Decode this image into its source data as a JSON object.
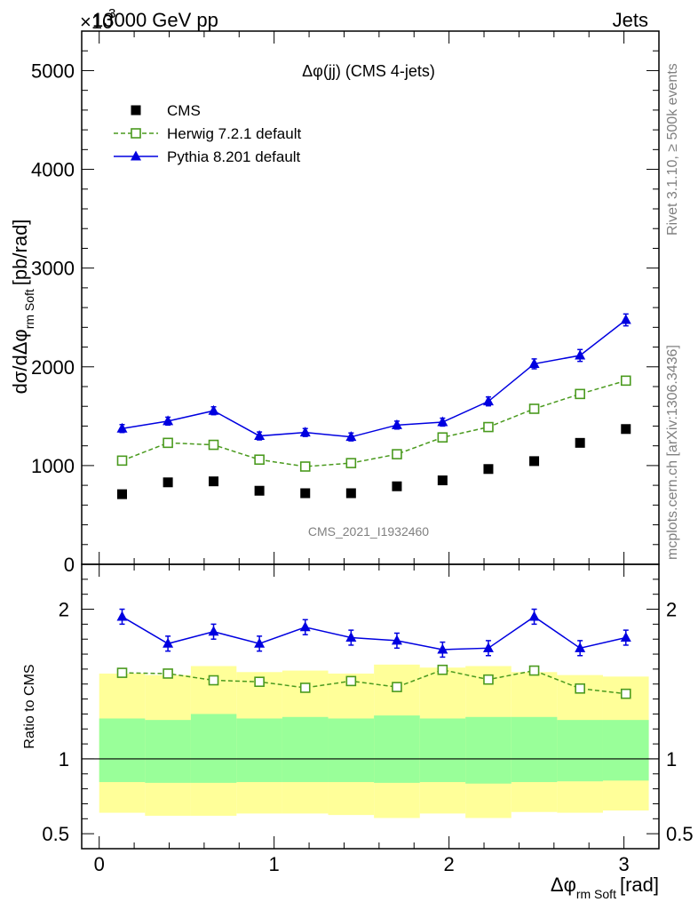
{
  "header": {
    "exponent_prefix": "×10",
    "exponent_power": "3",
    "process": "13000 GeV pp",
    "category": "Jets"
  },
  "side_labels": {
    "rivet": "Rivet 3.1.10, ≥ 500k events",
    "mcplots": "mcplots.cern.ch [arXiv:1306.3436]"
  },
  "watermark": "CMS_2021_I1932460",
  "chart_data": [
    {
      "type": "scatter",
      "panel": "main",
      "title": "Δφ(jj) (CMS 4-jets)",
      "ylabel": "dσ/dΔφ rm Soft [pb/rad]",
      "ylabel_main": "dσ/dΔφ",
      "ylabel_sub": "rm Soft",
      "ylabel_unit": "[pb/rad]",
      "xlim": [
        -0.1,
        3.2
      ],
      "ylim": [
        0,
        5400
      ],
      "y_scale_factor": 1000,
      "ytick_labels": [
        "0",
        "1000",
        "2000",
        "3000",
        "4000",
        "5000"
      ],
      "x": [
        0.131,
        0.393,
        0.654,
        0.916,
        1.178,
        1.44,
        1.702,
        1.963,
        2.225,
        2.487,
        2.749,
        3.011
      ],
      "series": [
        {
          "name": "CMS",
          "style": "data",
          "color": "#000000",
          "values": [
            710,
            830,
            840,
            745,
            720,
            720,
            790,
            850,
            965,
            1045,
            1230,
            1370
          ],
          "errors": [
            0,
            0,
            0,
            0,
            0,
            0,
            0,
            0,
            0,
            0,
            0,
            0
          ]
        },
        {
          "name": "Herwig 7.2.1 default",
          "style": "dashed-open-square",
          "color": "#4a9a1e",
          "values": [
            1050,
            1230,
            1210,
            1060,
            990,
            1025,
            1115,
            1285,
            1390,
            1575,
            1725,
            1860
          ],
          "errors": [
            10,
            10,
            10,
            10,
            10,
            10,
            10,
            10,
            12,
            12,
            14,
            16
          ]
        },
        {
          "name": "Pythia 8.201 default",
          "style": "solid-triangle",
          "color": "#0000e0",
          "values": [
            1375,
            1450,
            1555,
            1300,
            1335,
            1290,
            1410,
            1440,
            1650,
            2030,
            2115,
            2475
          ],
          "errors": [
            40,
            40,
            40,
            40,
            40,
            40,
            40,
            40,
            45,
            50,
            60,
            60
          ]
        }
      ],
      "legend": "top-left"
    },
    {
      "type": "scatter",
      "panel": "ratio",
      "ylabel": "Ratio to CMS",
      "xlabel": "Δφ rm Soft [rad]",
      "xlabel_main": "Δφ",
      "xlabel_sub": "rm Soft",
      "xlabel_unit": "[rad]",
      "xlim": [
        -0.1,
        3.2
      ],
      "ylim": [
        0.4,
        2.3
      ],
      "ytick_labels": [
        "0.5",
        "1",
        "2"
      ],
      "xtick_labels": [
        "0",
        "1",
        "2",
        "3"
      ],
      "reference_line": 1,
      "bin_edges": [
        0,
        0.262,
        0.524,
        0.785,
        1.047,
        1.309,
        1.571,
        1.833,
        2.094,
        2.356,
        2.618,
        2.88,
        3.142
      ],
      "bands": [
        {
          "name": "outer uncertainty",
          "color": "#ffff99",
          "low": [
            0.64,
            0.62,
            0.62,
            0.635,
            0.635,
            0.625,
            0.605,
            0.635,
            0.605,
            0.645,
            0.64,
            0.655
          ],
          "high": [
            1.57,
            1.56,
            1.62,
            1.58,
            1.59,
            1.57,
            1.63,
            1.61,
            1.62,
            1.58,
            1.56,
            1.55
          ]
        },
        {
          "name": "inner uncertainty",
          "color": "#99ff99",
          "low": [
            0.845,
            0.84,
            0.84,
            0.845,
            0.845,
            0.845,
            0.84,
            0.845,
            0.835,
            0.845,
            0.85,
            0.855
          ],
          "high": [
            1.27,
            1.26,
            1.3,
            1.27,
            1.28,
            1.27,
            1.29,
            1.27,
            1.28,
            1.28,
            1.26,
            1.26
          ]
        }
      ],
      "series": [
        {
          "name": "Herwig 7.2.1 default",
          "style": "dashed-open-square",
          "color": "#4a9a1e",
          "values": [
            1.575,
            1.57,
            1.525,
            1.515,
            1.475,
            1.52,
            1.48,
            1.595,
            1.53,
            1.59,
            1.47,
            1.435
          ],
          "errors": [
            0.01,
            0.01,
            0.01,
            0.01,
            0.01,
            0.01,
            0.01,
            0.01,
            0.01,
            0.01,
            0.01,
            0.01
          ]
        },
        {
          "name": "Pythia 8.201 default",
          "style": "solid-triangle",
          "color": "#0000e0",
          "values": [
            1.95,
            1.77,
            1.85,
            1.77,
            1.88,
            1.81,
            1.79,
            1.73,
            1.74,
            1.95,
            1.74,
            1.81
          ],
          "errors": [
            0.05,
            0.05,
            0.05,
            0.05,
            0.05,
            0.05,
            0.05,
            0.05,
            0.05,
            0.05,
            0.05,
            0.05
          ]
        }
      ]
    }
  ]
}
